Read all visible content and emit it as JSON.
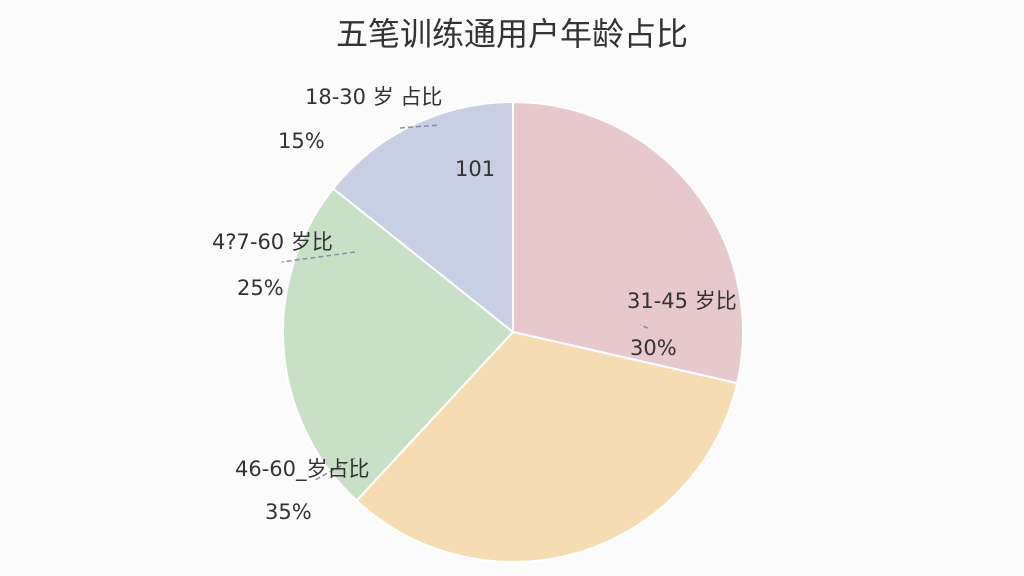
{
  "chart_data": {
    "type": "pie",
    "title": "五笔训练通用户年龄占比",
    "categories": [
      "31-45 岁比",
      "46-60_岁占比",
      "4?7-60 岁比",
      "18-30 岁 占比"
    ],
    "values": [
      30,
      35,
      25,
      15
    ],
    "value_labels": [
      "30%",
      "35%",
      "25%",
      "15%"
    ],
    "colors": [
      "#e7c9cd",
      "#f6dcb3",
      "#c8e0c6",
      "#c8cfe4"
    ],
    "annotation": "101"
  }
}
